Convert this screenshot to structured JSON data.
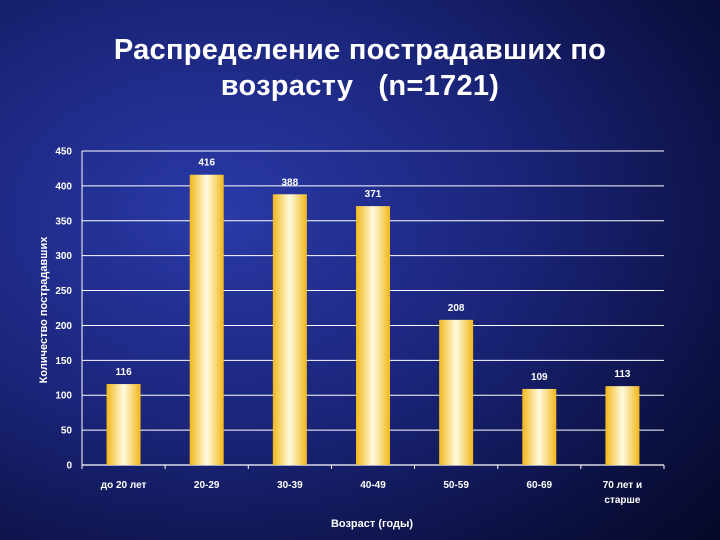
{
  "chart_data": {
    "type": "bar",
    "title_lines": [
      "Распределение пострадавших по",
      "возрасту   (n=1721)"
    ],
    "xlabel": "Возраст (годы)",
    "ylabel": "Количество пострадавших",
    "categories": [
      [
        "до 20 лет"
      ],
      [
        "20-29"
      ],
      [
        "30-39"
      ],
      [
        "40-49"
      ],
      [
        "50-59"
      ],
      [
        "60-69"
      ],
      [
        "70 лет и",
        "старше"
      ]
    ],
    "values": [
      116,
      416,
      388,
      371,
      208,
      109,
      113
    ],
    "data_labels": [
      "116",
      "416",
      "388",
      "371",
      "208",
      "109",
      "113"
    ],
    "ylim": [
      0,
      450
    ],
    "yticks": [
      "0",
      "50",
      "100",
      "150",
      "200",
      "250",
      "300",
      "350",
      "400",
      "450"
    ],
    "grid": true,
    "legend": "none",
    "colors": {
      "bar_edge": "#f5c12a",
      "bar_center": "#fffbe0",
      "grid": "#ffffff",
      "background": "#1a2478"
    }
  }
}
